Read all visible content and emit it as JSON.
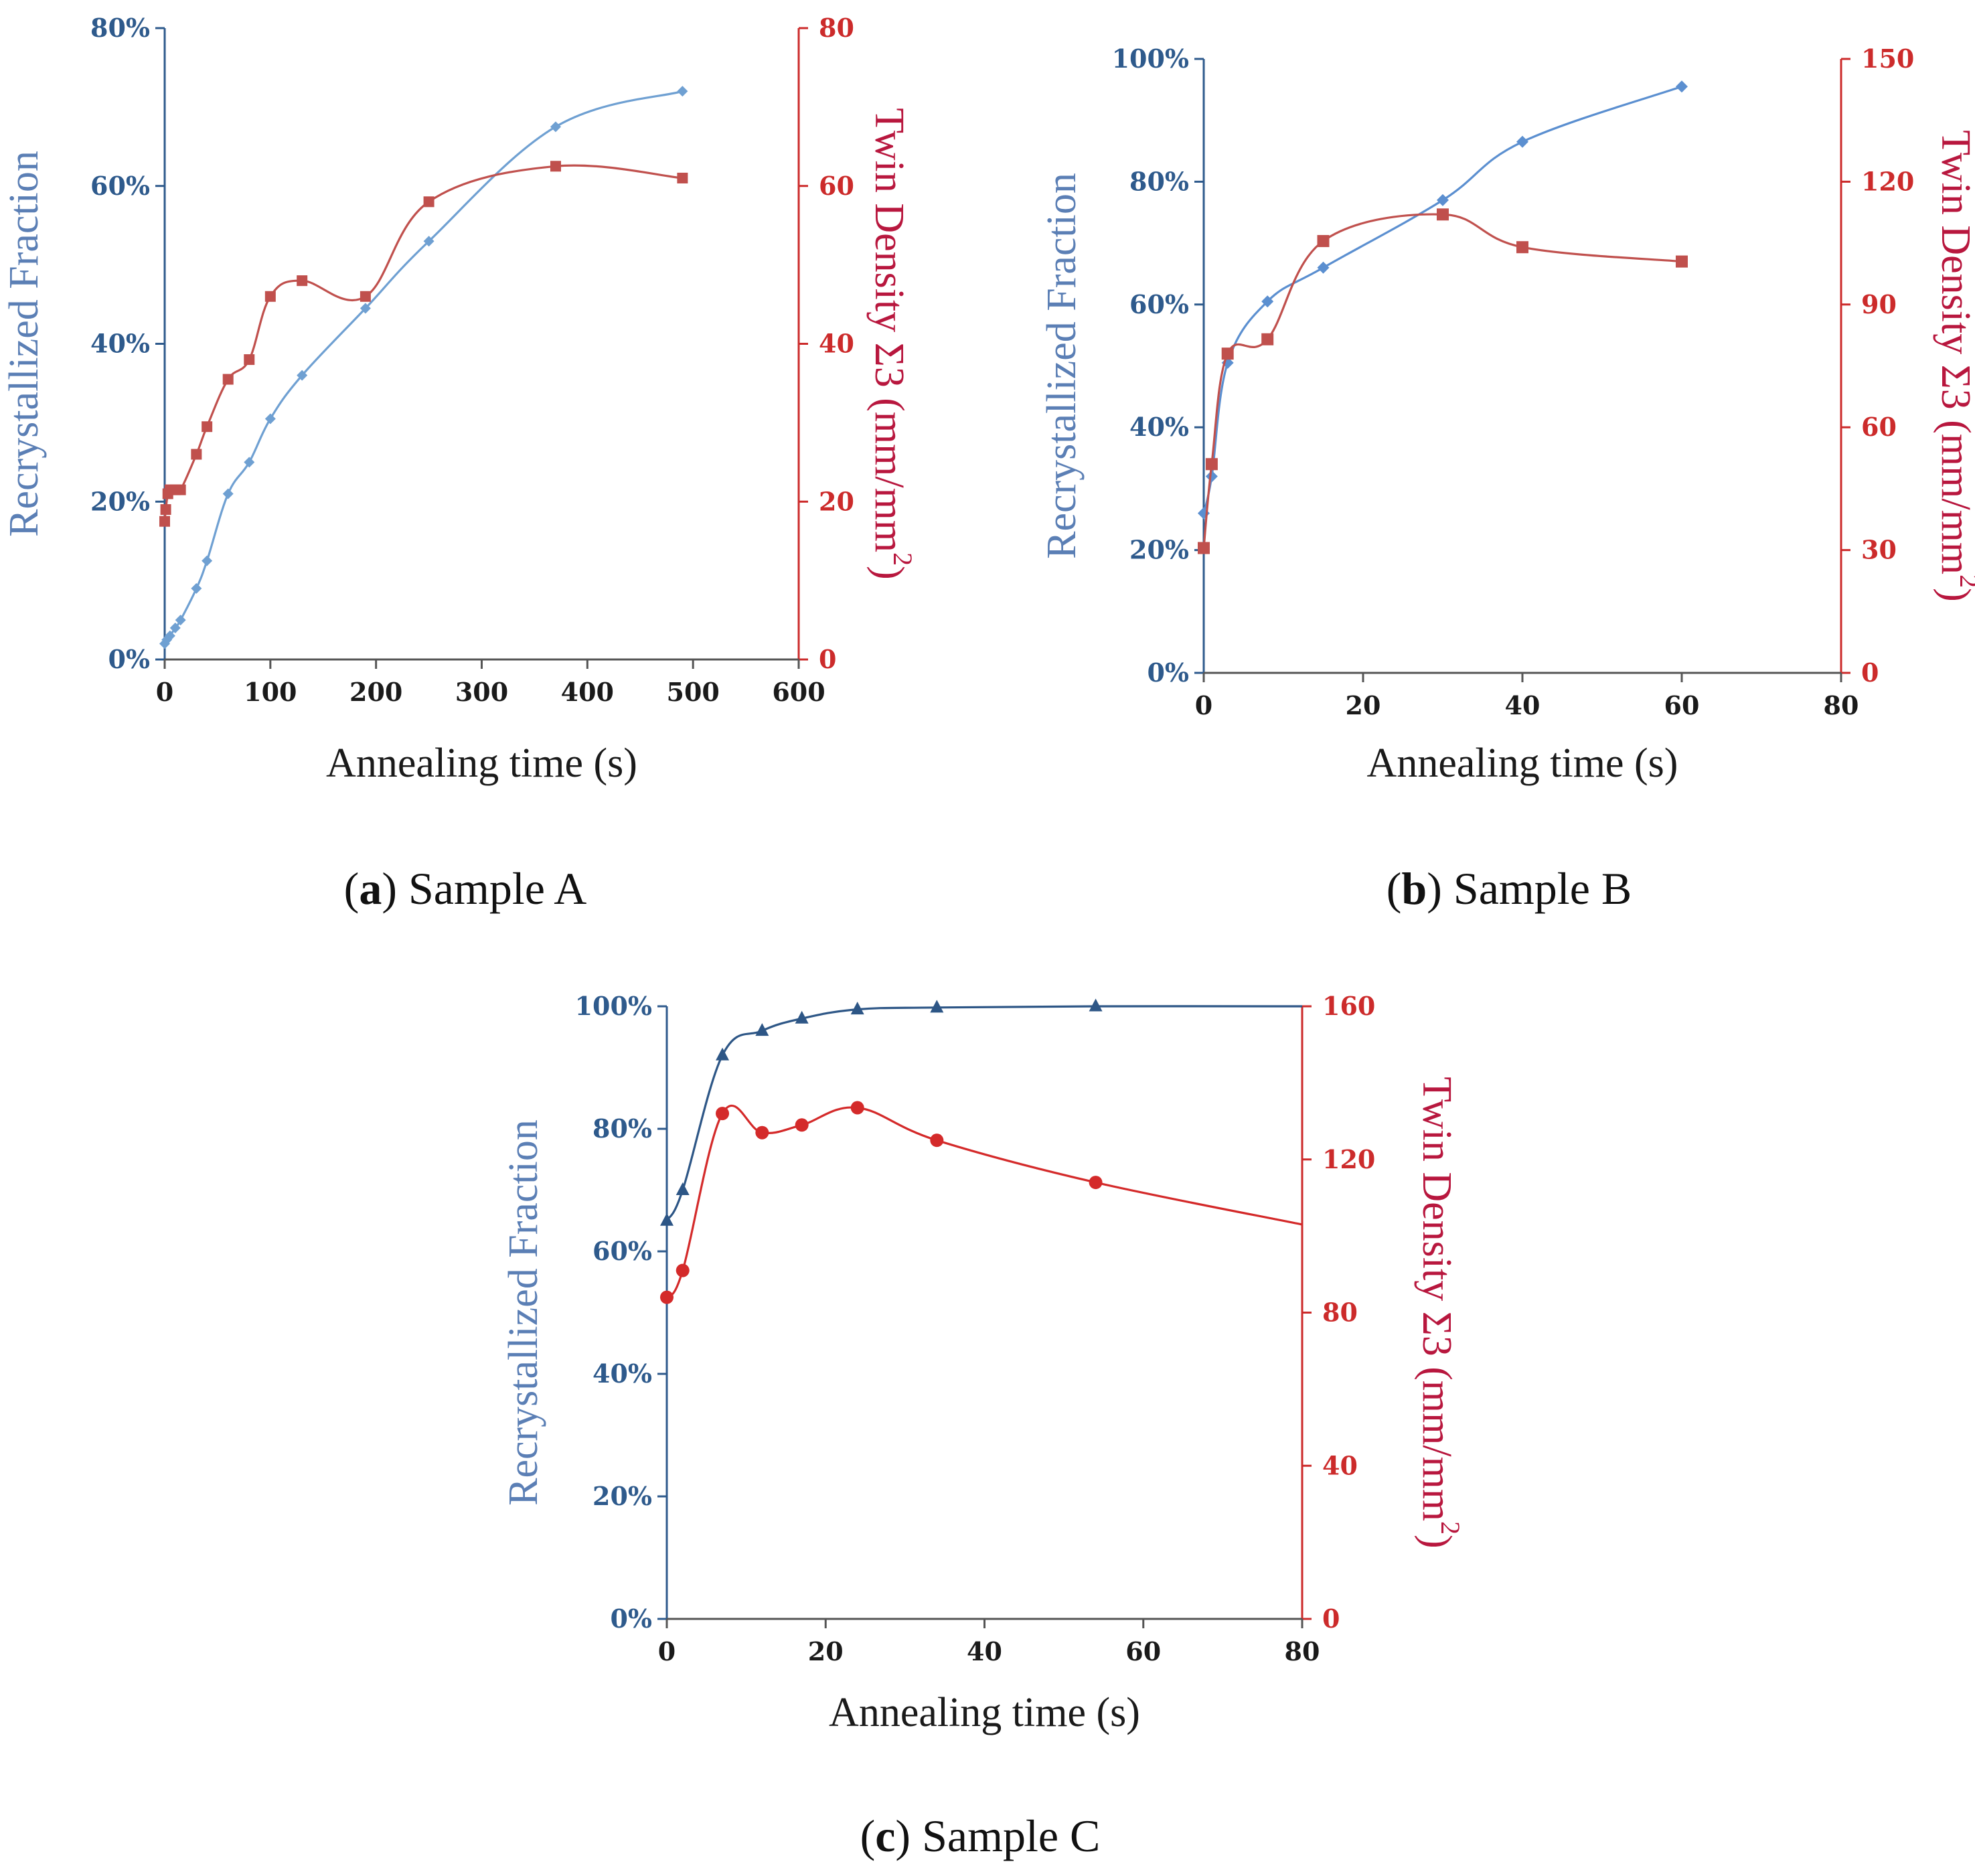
{
  "colors": {
    "left_axis": "#2e5a8c",
    "right_axis": "#cc2b2b",
    "series_a_frac": "#6fa0d2",
    "series_a_twin": "#c0504d",
    "series_b_frac": "#5b8fd0",
    "series_b_twin": "#c0504d",
    "series_c_frac": "#2d5686",
    "series_c_twin": "#d42a2a",
    "left_title_color": "#5b7fb5",
    "right_title_color": "#b8173e"
  },
  "chart_data": [
    {
      "id": "a",
      "type": "line",
      "caption_letter": "a",
      "caption_text": "Sample A",
      "xlabel": "Annealing time (s)",
      "ylabel_left": "Recrystallized Fraction",
      "ylabel_right_main": "Twin Density Σ3 (mm/mm",
      "ylabel_right_sup": "2",
      "ylabel_right_end": ")",
      "xlim": [
        0,
        600
      ],
      "x_ticks": [
        "0",
        "100",
        "200",
        "300",
        "400",
        "500",
        "600"
      ],
      "x_tick_values": [
        0,
        100,
        200,
        300,
        400,
        500,
        600
      ],
      "ylim_left": [
        0,
        80
      ],
      "y_left_ticks": [
        "0%",
        "20%",
        "40%",
        "60%",
        "80%"
      ],
      "y_left_tick_values": [
        0,
        20,
        40,
        60,
        80
      ],
      "ylim_right": [
        0,
        80
      ],
      "y_right_ticks": [
        "0",
        "20",
        "40",
        "60",
        "80"
      ],
      "y_right_tick_values": [
        0,
        20,
        40,
        60,
        80
      ],
      "series": [
        {
          "name": "Recrystallized Fraction",
          "axis": "left",
          "marker": "diamond",
          "color_key": "series_a_frac",
          "x": [
            0,
            2,
            5,
            10,
            15,
            30,
            40,
            60,
            80,
            100,
            130,
            190,
            250,
            370,
            490
          ],
          "y": [
            2,
            2.5,
            3,
            4,
            5,
            9,
            12.5,
            21,
            25,
            30.5,
            36,
            44.5,
            53,
            67.5,
            72
          ]
        },
        {
          "name": "Twin Density Σ3",
          "axis": "right",
          "marker": "square",
          "color_key": "series_a_twin",
          "x": [
            0,
            1,
            3,
            5,
            10,
            15,
            30,
            40,
            60,
            80,
            100,
            130,
            190,
            250,
            370,
            490
          ],
          "y": [
            17.5,
            19,
            21,
            21.5,
            21.5,
            21.5,
            26,
            29.5,
            35.5,
            38,
            46,
            48,
            46,
            58,
            62.5,
            61
          ]
        }
      ]
    },
    {
      "id": "b",
      "type": "line",
      "caption_letter": "b",
      "caption_text": "Sample B",
      "xlabel": "Annealing time (s)",
      "ylabel_left": "Recrystallized Fraction",
      "ylabel_right_main": "Twin Density Σ3 (mm/mm",
      "ylabel_right_sup": "2",
      "ylabel_right_end": ")",
      "xlim": [
        0,
        80
      ],
      "x_ticks": [
        "0",
        "20",
        "40",
        "60",
        "80"
      ],
      "x_tick_values": [
        0,
        20,
        40,
        60,
        80
      ],
      "ylim_left": [
        0,
        100
      ],
      "y_left_ticks": [
        "0%",
        "20%",
        "40%",
        "60%",
        "80%",
        "100%"
      ],
      "y_left_tick_values": [
        0,
        20,
        40,
        60,
        80,
        100
      ],
      "ylim_right": [
        0,
        150
      ],
      "y_right_ticks": [
        "0",
        "30",
        "60",
        "90",
        "120",
        "150"
      ],
      "y_right_tick_values": [
        0,
        30,
        60,
        90,
        120,
        150
      ],
      "series": [
        {
          "name": "Recrystallized Fraction",
          "axis": "left",
          "marker": "diamond",
          "color_key": "series_b_frac",
          "x": [
            0,
            1,
            3,
            8,
            15,
            30,
            40,
            60
          ],
          "y": [
            26,
            32,
            50.5,
            60.5,
            66,
            77,
            86.5,
            95.5
          ]
        },
        {
          "name": "Twin Density Σ3",
          "axis": "right",
          "marker": "square",
          "color_key": "series_b_twin",
          "x": [
            0,
            1,
            3,
            8,
            15,
            30,
            40,
            60
          ],
          "y": [
            30.5,
            51,
            78,
            81.5,
            105.5,
            112,
            104,
            100.5
          ]
        }
      ]
    },
    {
      "id": "c",
      "type": "line",
      "caption_letter": "c",
      "caption_text": "Sample C",
      "xlabel": "Annealing time (s)",
      "ylabel_left": "Recrystallized Fraction",
      "ylabel_right_main": "Twin Density Σ3 (mm/mm",
      "ylabel_right_sup": "2",
      "ylabel_right_end": ")",
      "xlim": [
        0,
        80
      ],
      "x_ticks": [
        "0",
        "20",
        "40",
        "60",
        "80"
      ],
      "x_tick_values": [
        0,
        20,
        40,
        60,
        80
      ],
      "ylim_left": [
        0,
        100
      ],
      "y_left_ticks": [
        "0%",
        "20%",
        "40%",
        "60%",
        "80%",
        "100%"
      ],
      "y_left_tick_values": [
        0,
        20,
        40,
        60,
        80,
        100
      ],
      "ylim_right": [
        0,
        160
      ],
      "y_right_ticks": [
        "0",
        "40",
        "80",
        "120",
        "160"
      ],
      "y_right_tick_values": [
        0,
        40,
        80,
        120,
        160
      ],
      "series": [
        {
          "name": "Recrystallized Fraction",
          "axis": "left",
          "marker": "triangle",
          "color_key": "series_c_frac",
          "x": [
            0,
            2,
            7,
            12,
            17,
            24,
            34,
            54,
            80
          ],
          "y": [
            65,
            70,
            92,
            96,
            98,
            99.5,
            99.8,
            100,
            100
          ],
          "marker_mask": [
            1,
            1,
            1,
            1,
            1,
            1,
            1,
            1,
            0
          ]
        },
        {
          "name": "Twin Density Σ3",
          "axis": "right",
          "marker": "circle",
          "color_key": "series_c_twin",
          "x": [
            0,
            2,
            7,
            12,
            17,
            24,
            34,
            54,
            80
          ],
          "y": [
            84,
            91,
            132,
            127,
            129,
            133.5,
            125,
            114,
            103
          ],
          "marker_mask": [
            1,
            1,
            1,
            1,
            1,
            1,
            1,
            1,
            0
          ]
        }
      ]
    }
  ]
}
